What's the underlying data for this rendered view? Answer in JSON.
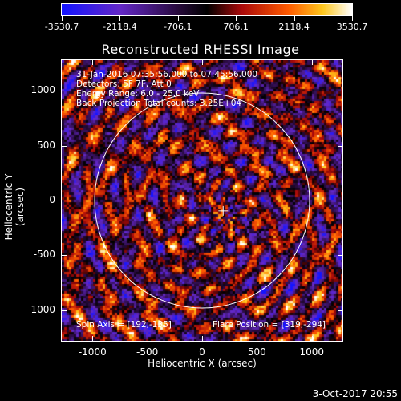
{
  "colorbar": {
    "labels": [
      "-3530.7",
      "-2118.4",
      "-706.1",
      "706.1",
      "2118.4",
      "3530.7"
    ],
    "min": -3530.7,
    "max": 3530.7
  },
  "title": "Reconstructed RHESSI Image",
  "info": {
    "time": "31-Jan-2016 07:35:56.000 to 07:45:56.000",
    "detectors": "Detectors: 5F 7F, Att 0",
    "energy": "Energy Range: 6.0 - 25.0 keV",
    "method": "Back Projection    Total counts: 3.25E+04",
    "spin_axis": "Spin Axis = [192,-135]",
    "flare_position": "Flare Position = [319,-294]"
  },
  "axes": {
    "xlabel": "Heliocentric X (arcsec)",
    "ylabel": "Heliocentric Y (arcsec)",
    "x_ticks": [
      "-1000",
      "-500",
      "0",
      "500",
      "1000"
    ],
    "y_ticks": [
      "1000",
      "500",
      "0",
      "-500",
      "-1000"
    ],
    "xlim": [
      -1280,
      1280
    ],
    "ylim": [
      -1280,
      1280
    ]
  },
  "solar_limb_radius_arcsec": 980,
  "timestamp": "3-Oct-2017 20:55"
}
